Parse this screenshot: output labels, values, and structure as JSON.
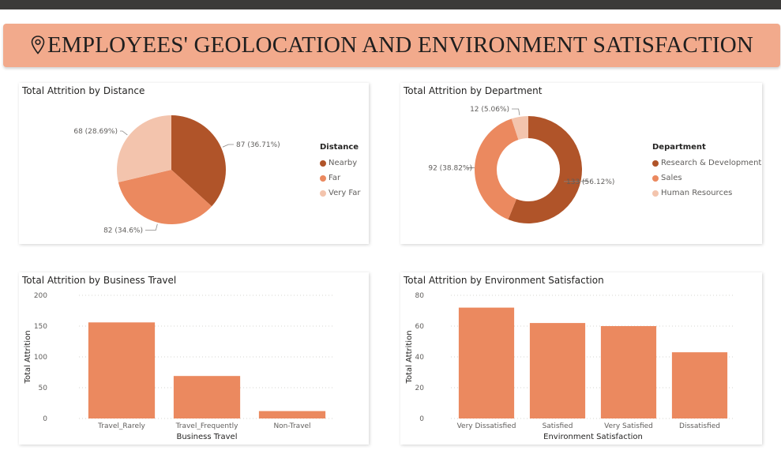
{
  "banner": {
    "title": "EMPLOYEES' GEOLOCATION AND ENVIRONMENT SATISFACTION",
    "icon": "location-pin-icon"
  },
  "colors": {
    "dark": "#b05429",
    "mid": "#eb895f",
    "light": "#f3c4ad",
    "banner": "#f2aa8c",
    "grid": "#c8c6c4"
  },
  "chart_data": [
    {
      "type": "pie",
      "title": "Total Attrition by Distance",
      "legend_title": "Distance",
      "legend_position": "right",
      "slices": [
        {
          "label": "Nearby",
          "value": 87,
          "text": "87 (36.71%)"
        },
        {
          "label": "Far",
          "value": 82,
          "text": "82 (34.6%)"
        },
        {
          "label": "Very Far",
          "value": 68,
          "text": "68 (28.69%)"
        }
      ]
    },
    {
      "type": "donut",
      "title": "Total Attrition by Department",
      "legend_title": "Department",
      "legend_position": "right",
      "slices": [
        {
          "label": "Research & Development",
          "value": 133,
          "text": "133 (56.12%)"
        },
        {
          "label": "Sales",
          "value": 92,
          "text": "92 (38.82%)"
        },
        {
          "label": "Human Resources",
          "value": 12,
          "text": "12 (5.06%)"
        }
      ]
    },
    {
      "type": "bar",
      "title": "Total Attrition by Business Travel",
      "xlabel": "Business Travel",
      "ylabel": "Total Attrition",
      "ylim": [
        0,
        200
      ],
      "yticks": [
        0,
        50,
        100,
        150,
        200
      ],
      "categories": [
        "Travel_Rarely",
        "Travel_Frequently",
        "Non-Travel"
      ],
      "values": [
        156,
        69,
        12
      ],
      "grid": true
    },
    {
      "type": "bar",
      "title": "Total Attrition by Environment Satisfaction",
      "xlabel": "Environment Satisfaction",
      "ylabel": "Total Attrition",
      "ylim": [
        0,
        80
      ],
      "yticks": [
        0,
        20,
        40,
        60,
        80
      ],
      "categories": [
        "Very Dissatisfied",
        "Satisfied",
        "Very Satisfied",
        "Dissatisfied"
      ],
      "values": [
        72,
        62,
        60,
        43
      ],
      "grid": true
    }
  ]
}
